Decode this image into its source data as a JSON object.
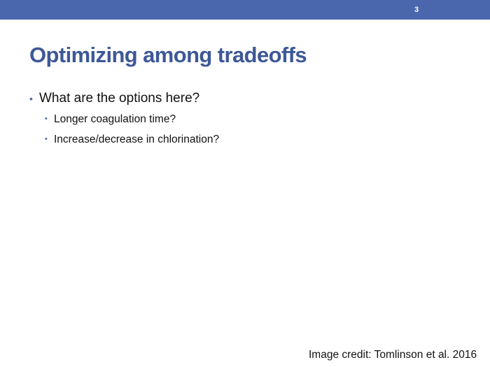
{
  "header": {
    "slide_number": "3",
    "bar_color": "#4a67ad"
  },
  "title": "Optimizing among tradeoffs",
  "title_color": "#3d5897",
  "bullets": {
    "level1": [
      "What are the options here?"
    ],
    "level2": [
      "Longer coagulation time?",
      "Increase/decrease in chlorination?"
    ],
    "marker_icon": "bullet-dot-icon",
    "marker_color": "#4a67ad"
  },
  "footer": {
    "image_credit": "Image credit: Tomlinson et al. 2016"
  }
}
